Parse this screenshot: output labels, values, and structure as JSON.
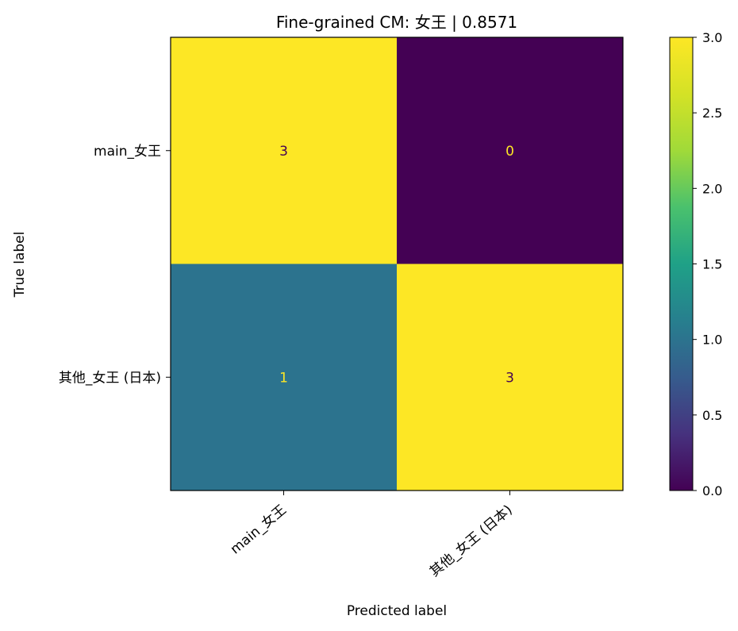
{
  "chart_data": {
    "type": "heatmap",
    "title": "Fine-grained CM: 女王 | 0.8571",
    "xlabel": "Predicted label",
    "ylabel": "True label",
    "x_categories": [
      "main_女王",
      "其他_女王 (日本)"
    ],
    "y_categories": [
      "main_女王",
      "其他_女王 (日本)"
    ],
    "matrix": [
      [
        3,
        0
      ],
      [
        1,
        3
      ]
    ],
    "colormap": "viridis",
    "color_range": [
      0,
      3
    ],
    "colorbar_ticks": [
      "0.0",
      "0.5",
      "1.0",
      "1.5",
      "2.0",
      "2.5",
      "3.0"
    ],
    "colorbar_tick_values": [
      0,
      0.5,
      1.0,
      1.5,
      2.0,
      2.5,
      3.0
    ],
    "grid": false,
    "colors": {
      "high": "#fde725",
      "low": "#440154",
      "text_on_dark": "#fde725",
      "text_on_light": "#440154"
    }
  }
}
